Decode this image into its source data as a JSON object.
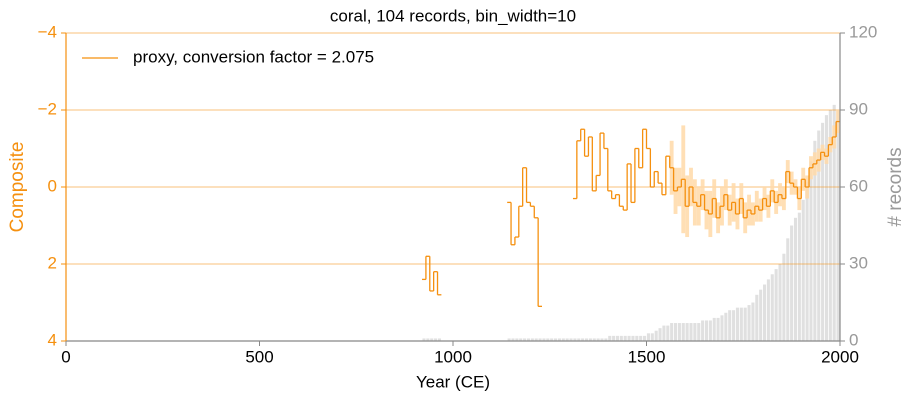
{
  "chart_data": {
    "type": "line",
    "title": "coral, 104 records, bin_width=10",
    "xlabel": "Year (CE)",
    "ylabel": "Composite",
    "y2label": "# records",
    "xlim": [
      0,
      2000
    ],
    "xticks": [
      0,
      500,
      1000,
      1500,
      2000
    ],
    "ylim": [
      4,
      -4
    ],
    "yticks": [
      {
        "value": -4,
        "label": "−4"
      },
      {
        "value": -2,
        "label": "−2"
      },
      {
        "value": 0,
        "label": "0"
      },
      {
        "value": 2,
        "label": "2"
      },
      {
        "value": 4,
        "label": "4"
      }
    ],
    "y2lim": [
      0,
      120
    ],
    "y2ticks": [
      0,
      30,
      60,
      90,
      120
    ],
    "grid": true,
    "legend": "upper left",
    "bin_width": 10,
    "x": [
      920,
      930,
      940,
      950,
      960,
      970,
      980,
      990,
      1000,
      1010,
      1020,
      1030,
      1040,
      1050,
      1060,
      1070,
      1080,
      1090,
      1100,
      1110,
      1120,
      1130,
      1140,
      1150,
      1160,
      1170,
      1180,
      1190,
      1200,
      1210,
      1220,
      1230,
      1240,
      1250,
      1260,
      1270,
      1280,
      1290,
      1300,
      1310,
      1320,
      1330,
      1340,
      1350,
      1360,
      1370,
      1380,
      1390,
      1400,
      1410,
      1420,
      1430,
      1440,
      1450,
      1460,
      1470,
      1480,
      1490,
      1500,
      1510,
      1520,
      1530,
      1540,
      1550,
      1560,
      1570,
      1580,
      1590,
      1600,
      1610,
      1620,
      1630,
      1640,
      1650,
      1660,
      1670,
      1680,
      1690,
      1700,
      1710,
      1720,
      1730,
      1740,
      1750,
      1760,
      1770,
      1780,
      1790,
      1800,
      1810,
      1820,
      1830,
      1840,
      1850,
      1860,
      1870,
      1880,
      1890,
      1900,
      1910,
      1920,
      1930,
      1940,
      1950,
      1960,
      1970,
      1980,
      1990
    ],
    "series": [
      {
        "name": "# records",
        "type": "bar",
        "axis": "y2",
        "color": "#e0e0e0",
        "values": [
          1,
          1,
          1,
          1,
          1,
          0,
          0,
          0,
          0,
          0,
          0,
          0,
          0,
          0,
          0,
          0,
          0,
          0,
          0,
          0,
          0,
          0,
          1,
          1,
          1,
          1,
          1,
          1,
          1,
          1,
          1,
          1,
          1,
          1,
          1,
          1,
          1,
          1,
          1,
          1,
          1,
          1,
          1,
          1,
          1,
          1,
          1,
          1,
          2,
          2,
          2,
          2,
          2,
          2,
          2,
          2,
          2,
          2,
          3,
          3,
          4,
          5,
          6,
          6,
          7,
          7,
          7,
          7,
          7,
          7,
          7,
          7,
          8,
          8,
          8,
          9,
          9,
          10,
          11,
          12,
          12,
          13,
          13,
          13,
          14,
          15,
          18,
          20,
          22,
          24,
          26,
          28,
          30,
          34,
          40,
          45,
          48,
          50,
          55,
          62,
          70,
          78,
          82,
          85,
          88,
          90,
          92,
          90
        ]
      },
      {
        "name": "proxy, conversion factor = 2.075",
        "type": "line",
        "color": "#f5900f",
        "band_color": "#ffd9a8",
        "values": [
          2.4,
          1.8,
          2.7,
          2.2,
          2.8,
          null,
          null,
          null,
          null,
          null,
          null,
          null,
          null,
          null,
          null,
          null,
          null,
          null,
          null,
          null,
          null,
          null,
          0.4,
          1.5,
          1.3,
          0.5,
          -0.5,
          0.4,
          0.5,
          0.8,
          3.1,
          null,
          null,
          null,
          null,
          null,
          null,
          null,
          null,
          0.3,
          -1.2,
          -1.5,
          -0.8,
          -1.3,
          0.1,
          -0.3,
          -1.4,
          -1.0,
          0.1,
          0.3,
          0.2,
          0.5,
          0.6,
          -0.6,
          0.4,
          -1.0,
          -0.5,
          -1.5,
          -1.0,
          0.0,
          -0.4,
          -0.1,
          0.2,
          -0.8,
          -0.5,
          0.1,
          0.0,
          -0.2,
          0.5,
          0.0,
          0.4,
          0.5,
          0.2,
          0.6,
          0.7,
          0.3,
          0.8,
          0.5,
          0.2,
          0.6,
          0.4,
          0.7,
          0.3,
          0.8,
          0.6,
          0.7,
          0.5,
          0.6,
          0.3,
          0.5,
          0.1,
          0.4,
          0.2,
          0.3,
          -0.4,
          -0.1,
          0.0,
          0.3,
          -0.2,
          0.0,
          -0.5,
          -0.6,
          -0.7,
          -0.9,
          -0.8,
          -1.1,
          -1.3,
          -1.7
        ],
        "errors": [
          null,
          null,
          null,
          null,
          null,
          null,
          null,
          null,
          null,
          null,
          null,
          null,
          null,
          null,
          null,
          null,
          null,
          null,
          null,
          null,
          null,
          null,
          null,
          null,
          null,
          null,
          null,
          null,
          null,
          null,
          null,
          null,
          null,
          null,
          null,
          null,
          null,
          null,
          null,
          null,
          null,
          null,
          null,
          null,
          null,
          null,
          null,
          null,
          null,
          null,
          null,
          null,
          null,
          null,
          null,
          null,
          null,
          null,
          null,
          null,
          null,
          null,
          null,
          null,
          0.7,
          0.6,
          0.5,
          1.4,
          0.8,
          0.5,
          0.6,
          0.5,
          0.4,
          0.5,
          0.6,
          0.5,
          0.4,
          0.5,
          0.4,
          0.4,
          0.5,
          0.4,
          0.4,
          0.4,
          0.4,
          0.3,
          0.4,
          0.3,
          0.3,
          0.3,
          0.3,
          0.3,
          0.3,
          0.3,
          0.3,
          0.3,
          0.2,
          0.3,
          0.3,
          0.3,
          0.3,
          0.3,
          0.3,
          0.2,
          0.2,
          0.2,
          0.3,
          0.3
        ]
      }
    ]
  }
}
